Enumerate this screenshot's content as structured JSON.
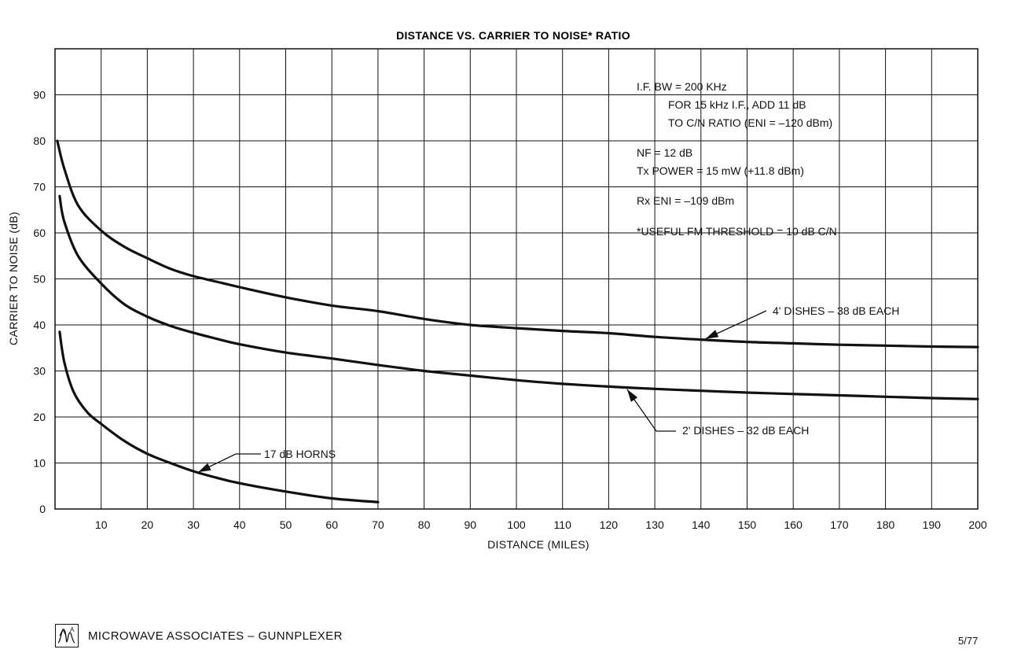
{
  "chart_data": {
    "type": "line",
    "title": "DISTANCE VS. CARRIER TO NOISE* RATIO",
    "xlabel": "DISTANCE (MILES)",
    "ylabel": "CARRIER TO NOISE (dB)",
    "xlim": [
      0,
      200
    ],
    "ylim": [
      0,
      100
    ],
    "x_ticks": [
      "10",
      "20",
      "30",
      "40",
      "50",
      "60",
      "70",
      "80",
      "90",
      "100",
      "110",
      "120",
      "130",
      "140",
      "150",
      "160",
      "170",
      "180",
      "190",
      "200"
    ],
    "y_ticks": [
      "0",
      "10",
      "20",
      "30",
      "40",
      "50",
      "60",
      "70",
      "80",
      "90"
    ],
    "grid": true,
    "series": [
      {
        "name": "4' DISHES – 38 dB EACH",
        "points": [
          [
            0.5,
            80
          ],
          [
            2,
            74
          ],
          [
            5,
            66
          ],
          [
            10,
            60.5
          ],
          [
            15,
            57
          ],
          [
            20,
            54.5
          ],
          [
            25,
            52.2
          ],
          [
            30,
            50.6
          ],
          [
            35,
            49.4
          ],
          [
            40,
            48.2
          ],
          [
            50,
            46
          ],
          [
            60,
            44.2
          ],
          [
            70,
            43
          ],
          [
            80,
            41.3
          ],
          [
            90,
            40
          ],
          [
            100,
            39.3
          ],
          [
            110,
            38.7
          ],
          [
            120,
            38.2
          ],
          [
            130,
            37.4
          ],
          [
            140,
            36.8
          ],
          [
            150,
            36.3
          ],
          [
            160,
            36
          ],
          [
            170,
            35.7
          ],
          [
            180,
            35.5
          ],
          [
            190,
            35.3
          ],
          [
            200,
            35.2
          ]
        ]
      },
      {
        "name": "2' DISHES – 32 dB EACH",
        "points": [
          [
            1,
            68
          ],
          [
            2,
            62.5
          ],
          [
            5,
            55
          ],
          [
            10,
            49
          ],
          [
            15,
            44.5
          ],
          [
            20,
            41.8
          ],
          [
            25,
            39.8
          ],
          [
            30,
            38.3
          ],
          [
            35,
            37
          ],
          [
            40,
            35.8
          ],
          [
            50,
            34
          ],
          [
            60,
            32.7
          ],
          [
            70,
            31.3
          ],
          [
            80,
            30
          ],
          [
            90,
            29
          ],
          [
            100,
            28
          ],
          [
            110,
            27.2
          ],
          [
            120,
            26.6
          ],
          [
            130,
            26.1
          ],
          [
            140,
            25.7
          ],
          [
            150,
            25.3
          ],
          [
            160,
            25
          ],
          [
            170,
            24.7
          ],
          [
            180,
            24.4
          ],
          [
            190,
            24.1
          ],
          [
            200,
            23.9
          ]
        ]
      },
      {
        "name": "17 dB HORNS",
        "points": [
          [
            1,
            38.5
          ],
          [
            2,
            32
          ],
          [
            4,
            25.5
          ],
          [
            7,
            21
          ],
          [
            10,
            18.5
          ],
          [
            15,
            14.8
          ],
          [
            20,
            12
          ],
          [
            25,
            10
          ],
          [
            30,
            8.2
          ],
          [
            35,
            6.8
          ],
          [
            40,
            5.6
          ],
          [
            50,
            3.8
          ],
          [
            60,
            2.3
          ],
          [
            70,
            1.5
          ]
        ]
      }
    ],
    "annotations": [
      {
        "text": "4' DISHES – 38 dB EACH",
        "series": 0,
        "arrow_to": [
          141,
          37
        ]
      },
      {
        "text": "2' DISHES – 32 dB EACH",
        "series": 1,
        "arrow_to": [
          124,
          26
        ]
      },
      {
        "text": "17 dB HORNS",
        "series": 2,
        "arrow_to": [
          31,
          8
        ]
      }
    ],
    "notes": [
      "I.F. BW = 200 KHz",
      "FOR 15 kHz I.F., ADD 11 dB",
      "TO C/N RATIO (ENI = –120 dBm)",
      "NF = 12 dB",
      "Tx POWER =  15 mW  (+11.8 dBm)",
      "Rx ENI = –109 dBm",
      "*USEFUL FM THRESHOLD = 10 dB C/N"
    ]
  },
  "footer": {
    "logo_icon": "ma-logo-icon",
    "text": "MICROWAVE ASSOCIATES – GUNNPLEXER",
    "date": "5/77"
  }
}
